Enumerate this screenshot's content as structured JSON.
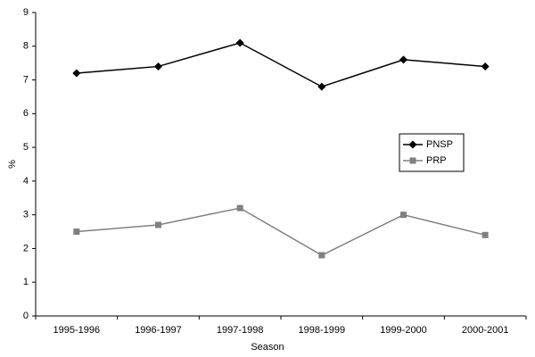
{
  "chart_data": {
    "type": "line",
    "x_label": "Season",
    "y_label": "%",
    "categories": [
      "1995-1996",
      "1996-1997",
      "1997-1998",
      "1998-1999",
      "1999-2000",
      "2000-2001"
    ],
    "series": [
      {
        "name": "PNSP",
        "color": "#000000",
        "marker": "diamond",
        "values": [
          7.2,
          7.4,
          8.1,
          6.8,
          7.6,
          7.4
        ]
      },
      {
        "name": "PRP",
        "color": "#808080",
        "marker": "square",
        "values": [
          2.5,
          2.7,
          3.2,
          1.8,
          3.0,
          2.4
        ]
      }
    ],
    "ylim": [
      0,
      9
    ],
    "yticks": [
      0,
      1,
      2,
      3,
      4,
      5,
      6,
      7,
      8,
      9
    ],
    "grid": false,
    "legend": "right"
  }
}
